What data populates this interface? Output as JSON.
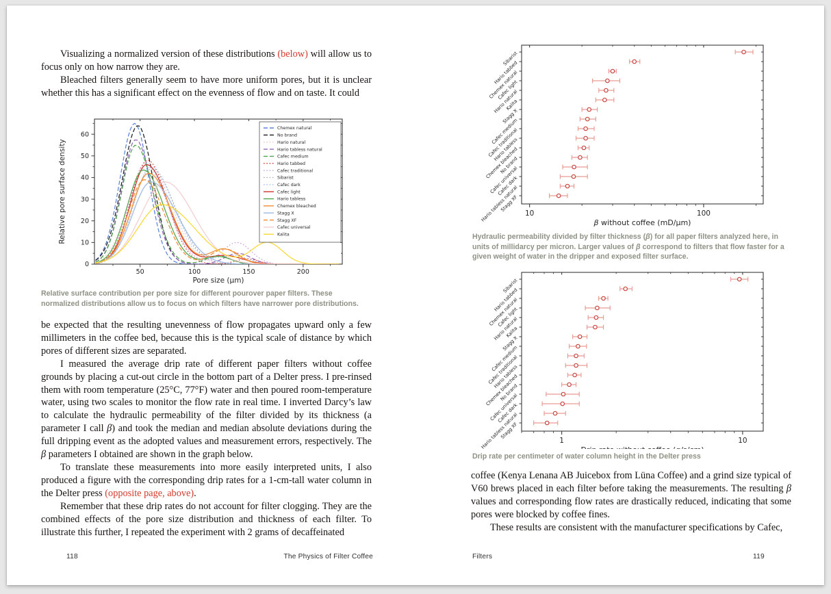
{
  "colors": {
    "accent_red": "#d33a2b",
    "caption_gray_green": "#8d9285",
    "marker_red": "#c9453f",
    "errorbar_red": "#eb9b94",
    "spine": "#3a3a3a"
  },
  "left_page": {
    "para1": [
      {
        "t": "Visualizing a normalized version of these distributions "
      },
      {
        "t": "(below)",
        "c": "red"
      },
      {
        "t": " will allow us to focus only on how narrow they are."
      }
    ],
    "para2": [
      {
        "t": "Bleached filters generally seem to have more uniform pores, but it is unclear whether this has a significant effect on the evenness of flow and on taste. It could"
      }
    ],
    "chart_caption": "Relative surface contribution per pore size for different pourover paper filters. These normalized distributions allow us to focus on which filters have narrower pore distributions.",
    "para3": [
      {
        "t": "be expected that the resulting unevenness of flow propagates upward only a few millimeters in the coffee bed, because this is the typical scale of distance by which pores of different sizes are separated."
      }
    ],
    "para4": [
      {
        "t": "I measured the average drip rate of different paper filters without coffee grounds by placing a cut-out circle in the bottom part of a Delter press. I pre-rinsed them with room temperature (25°C, 77°F) water and then poured room-temperature water, using two scales to monitor the flow rate in real time. I inverted Darcy’s law to calculate the hydraulic permeability of the filter divided by its thickness (a parameter I call "
      },
      {
        "t": "β",
        "c": "it"
      },
      {
        "t": ") and took the median and median absolute deviations during the full dripping event as the adopted values and measurement errors, respectively. The "
      },
      {
        "t": "β",
        "c": "it"
      },
      {
        "t": " parameters I obtained are shown in the graph below."
      }
    ],
    "para5": [
      {
        "t": "To translate these measurements into more easily interpreted units, I also produced a figure with the corresponding drip rates for a 1-cm-tall water column in the Delter press "
      },
      {
        "t": "(opposite page, above)",
        "c": "red"
      },
      {
        "t": "."
      }
    ],
    "para6": [
      {
        "t": "Remember that these drip rates do not account for filter clogging. They are the combined effects of the pore size distribution and thickness of each filter. To illustrate this further, I repeated the experiment with 2 grams of decaffeinated"
      }
    ],
    "footer_page_number": "118",
    "footer_book_title": "The Physics of Filter Coffee"
  },
  "right_page": {
    "caption_beta": [
      {
        "t": "Hydraulic permeability divided by filter thickness ("
      },
      {
        "t": "β",
        "c": "it"
      },
      {
        "t": ") for all paper filters analyzed here, in units of millidarcy per micron. Larger values of "
      },
      {
        "t": "β",
        "c": "it"
      },
      {
        "t": " correspond to filters that flow faster for a given weight of water in the dripper and exposed filter surface."
      }
    ],
    "caption_drip": "Drip rate per centimeter of water column height in the Delter press",
    "para1": [
      {
        "t": "coffee (Kenya Lenana AB Juicebox from Lüna Coffee) and a grind size typical of V60 brews placed in each filter before taking the measurements. The resulting "
      },
      {
        "t": "β",
        "c": "it"
      },
      {
        "t": " values and corresponding flow rates are drastically reduced, indicating that some pores were blocked by coffee fines."
      }
    ],
    "para2": [
      {
        "t": "These results are consistent with the manufacturer specifications by Cafec,"
      }
    ],
    "footer_section": "Filters",
    "footer_page_number": "119"
  },
  "chart_data": [
    {
      "id": "pore-distribution-chart",
      "type": "line",
      "xlabel": "Pore size (μm)",
      "ylabel": "Relative pore surface density",
      "xlim": [
        8,
        236
      ],
      "ylim": [
        0,
        67
      ],
      "xticks": [
        50,
        100,
        150,
        200
      ],
      "xminor_step": 25,
      "yticks": [
        0,
        10,
        20,
        30,
        40,
        50,
        60
      ],
      "yminor_step": 5,
      "legend_position": "upper right",
      "series": [
        {
          "name": "Chemex natural",
          "color": "#5b84d8",
          "dash": "dashed",
          "peak_x": 45,
          "peak_y": 65,
          "sigma_l": 13.5,
          "sigma_r": 13,
          "bump": null
        },
        {
          "name": "No brand",
          "color": "#1f1f1f",
          "dash": "dashed",
          "peak_x": 48,
          "peak_y": 64,
          "sigma_l": 14.5,
          "sigma_r": 14,
          "bump": null
        },
        {
          "name": "Hario natural",
          "color": "#f0c1c4",
          "dash": "dotted",
          "peak_x": 56,
          "peak_y": 47,
          "sigma_l": 17,
          "sigma_r": 22,
          "bump": null
        },
        {
          "name": "Hario tabless natural",
          "color": "#9467bd",
          "dash": "dashed",
          "peak_x": 46,
          "peak_y": 57.5,
          "sigma_l": 13,
          "sigma_r": 15,
          "bump": [
            140,
            5,
            12
          ]
        },
        {
          "name": "Cafec medium",
          "color": "#4ea64b",
          "dash": "dashed",
          "peak_x": 46,
          "peak_y": 55,
          "sigma_l": 13,
          "sigma_r": 16,
          "bump": [
            122,
            4,
            11
          ]
        },
        {
          "name": "Hario tabbed",
          "color": "#d64541",
          "dash": "dotted",
          "peak_x": 57,
          "peak_y": 48,
          "sigma_l": 16,
          "sigma_r": 18,
          "bump": [
            148,
            2.5,
            10
          ]
        },
        {
          "name": "Cafec traditional",
          "color": "#c79fdd",
          "dash": "dotted",
          "peak_x": 55,
          "peak_y": 46,
          "sigma_l": 15,
          "sigma_r": 20,
          "bump": [
            139,
            10,
            13
          ]
        },
        {
          "name": "Sibarist",
          "color": "#a8aeb4",
          "dash": "dotted",
          "peak_x": 60,
          "peak_y": 44,
          "sigma_l": 17,
          "sigma_r": 22,
          "bump": null
        },
        {
          "name": "Cafec dark",
          "color": "#9fc2e8",
          "dash": "dotted",
          "peak_x": 60,
          "peak_y": 45,
          "sigma_l": 16,
          "sigma_r": 21,
          "bump": [
            135,
            4,
            14
          ]
        },
        {
          "name": "Cafec light",
          "color": "#d0342c",
          "dash": "solid",
          "peak_x": 56,
          "peak_y": 46,
          "sigma_l": 15,
          "sigma_r": 20,
          "bump": [
            128,
            4,
            16
          ]
        },
        {
          "name": "Hario tabless",
          "color": "#4ea64b",
          "dash": "solid",
          "peak_x": 53,
          "peak_y": 43.5,
          "sigma_l": 15,
          "sigma_r": 19,
          "bump": [
            122,
            3.5,
            12
          ]
        },
        {
          "name": "Chemex bleached",
          "color": "#ef8c33",
          "dash": "solid",
          "peak_x": 58,
          "peak_y": 42,
          "sigma_l": 16,
          "sigma_r": 20,
          "bump": [
            127,
            7,
            13
          ]
        },
        {
          "name": "Stagg X",
          "color": "#9db9e4",
          "dash": "solid",
          "peak_x": 60,
          "peak_y": 38,
          "sigma_l": 17,
          "sigma_r": 24,
          "bump": null
        },
        {
          "name": "Stagg XF",
          "color": "#ef8c33",
          "dash": "dashed",
          "peak_x": 54,
          "peak_y": 39,
          "sigma_l": 15,
          "sigma_r": 18,
          "bump": [
            128,
            7,
            13
          ]
        },
        {
          "name": "Cafec universal",
          "color": "#f3cdd0",
          "dash": "solid",
          "peak_x": 73,
          "peak_y": 38,
          "sigma_l": 22,
          "sigma_r": 26,
          "bump": null
        },
        {
          "name": "Kalita",
          "color": "#f8d834",
          "dash": "solid",
          "peak_x": 70,
          "peak_y": 27.5,
          "sigma_l": 22,
          "sigma_r": 30,
          "bump": [
            167,
            10,
            14
          ]
        }
      ]
    },
    {
      "id": "beta-chart",
      "type": "scatter-errorbar",
      "xscale": "log",
      "xlim": [
        9,
        220
      ],
      "xticks": [
        10,
        100
      ],
      "xlabel_parts": [
        {
          "t": "β",
          "it": true
        },
        {
          "t": " without coffee (mD/μm)"
        }
      ],
      "points": [
        {
          "label": "Sibarist",
          "value": 170,
          "lo": 152,
          "hi": 192
        },
        {
          "label": "Hario tabbed",
          "value": 40,
          "lo": 37.5,
          "hi": 43
        },
        {
          "label": "Chemex natural",
          "value": 30,
          "lo": 28.5,
          "hi": 31.5
        },
        {
          "label": "Cafec light",
          "value": 28,
          "lo": 23,
          "hi": 33
        },
        {
          "label": "Hario natural",
          "value": 27.5,
          "lo": 25,
          "hi": 30.5
        },
        {
          "label": "Kalita",
          "value": 27,
          "lo": 24,
          "hi": 30.5
        },
        {
          "label": "Stagg X",
          "value": 22,
          "lo": 20,
          "hi": 24.5
        },
        {
          "label": "Cafec medium",
          "value": 21.5,
          "lo": 19.5,
          "hi": 24
        },
        {
          "label": "Cafec traditional",
          "value": 21,
          "lo": 19,
          "hi": 23.5
        },
        {
          "label": "Hario tabless",
          "value": 21,
          "lo": 18.5,
          "hi": 23.5
        },
        {
          "label": "Chemex bleached",
          "value": 20.5,
          "lo": 19,
          "hi": 22
        },
        {
          "label": "No brand",
          "value": 19.5,
          "lo": 17.5,
          "hi": 21.5
        },
        {
          "label": "Cafec universal",
          "value": 18,
          "lo": 15.5,
          "hi": 21.5
        },
        {
          "label": "Cafec dark",
          "value": 17.9,
          "lo": 15,
          "hi": 21.5
        },
        {
          "label": "Hario tabless natural",
          "value": 16.5,
          "lo": 15,
          "hi": 18
        },
        {
          "label": "Stagg XF",
          "value": 14.7,
          "lo": 13,
          "hi": 16.5
        }
      ]
    },
    {
      "id": "drip-rate-chart",
      "type": "scatter-errorbar",
      "xscale": "log",
      "xlim": [
        0.6,
        13
      ],
      "xticks": [
        1,
        10
      ],
      "xlabel_parts": [
        {
          "t": "Drip rate without coffee (g/s/cm)",
          "it": false
        }
      ],
      "points": [
        {
          "label": "Sibarist",
          "value": 9.6,
          "lo": 8.6,
          "hi": 10.7
        },
        {
          "label": "Hario tabbed",
          "value": 2.25,
          "lo": 2.1,
          "hi": 2.45
        },
        {
          "label": "Chemex natural",
          "value": 1.7,
          "lo": 1.6,
          "hi": 1.8
        },
        {
          "label": "Cafec light",
          "value": 1.57,
          "lo": 1.35,
          "hi": 1.85
        },
        {
          "label": "Hario natural",
          "value": 1.55,
          "lo": 1.4,
          "hi": 1.7
        },
        {
          "label": "Kalita",
          "value": 1.53,
          "lo": 1.38,
          "hi": 1.7
        },
        {
          "label": "Stagg X",
          "value": 1.26,
          "lo": 1.15,
          "hi": 1.38
        },
        {
          "label": "Cafec medium",
          "value": 1.23,
          "lo": 1.1,
          "hi": 1.37
        },
        {
          "label": "Cafec traditional",
          "value": 1.2,
          "lo": 1.08,
          "hi": 1.33
        },
        {
          "label": "Hario tabless",
          "value": 1.2,
          "lo": 1.05,
          "hi": 1.38
        },
        {
          "label": "Chemex bleached",
          "value": 1.18,
          "lo": 1.08,
          "hi": 1.28
        },
        {
          "label": "No brand",
          "value": 1.1,
          "lo": 1.0,
          "hi": 1.2
        },
        {
          "label": "Cafec universal",
          "value": 1.02,
          "lo": 0.82,
          "hi": 1.25
        },
        {
          "label": "Cafec dark",
          "value": 1.01,
          "lo": 0.78,
          "hi": 1.25
        },
        {
          "label": "Hario tabless natural",
          "value": 0.92,
          "lo": 0.8,
          "hi": 1.05
        },
        {
          "label": "Stagg XF",
          "value": 0.83,
          "lo": 0.7,
          "hi": 0.95
        }
      ]
    }
  ]
}
